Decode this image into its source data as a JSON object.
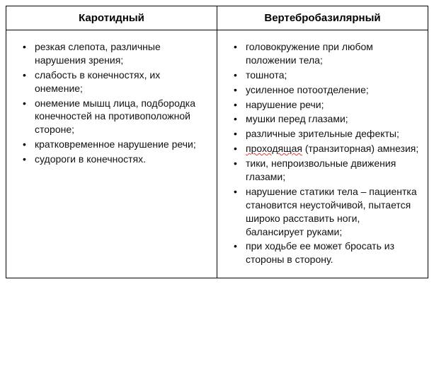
{
  "table": {
    "border_color": "#000000",
    "background_color": "#ffffff",
    "header_fontsize": 15,
    "cell_fontsize": 14,
    "text_color": "#111111",
    "columns": [
      {
        "header": "Каротидный"
      },
      {
        "header": "Вертебробазилярный"
      }
    ],
    "left_items": [
      "резкая слепота, различные нарушения зрения;",
      "слабость в конечностях, их онемение;",
      "онемение мышц лица, подбородка конечностей на противоположной стороне;",
      "кратковременное нарушение речи;",
      "судороги в конечностях."
    ],
    "right_items": [
      "головокружение при любом положении тела;",
      "тошнота;",
      "усиленное потоотделение;",
      "нарушение речи;",
      "мушки перед глазами;",
      "различные зрительные дефекты;",
      {
        "pre": "",
        "underlined": "проходящая",
        "post": " (транзиторная) амнезия;"
      },
      "тики, непроизвольные движения глазами;",
      "нарушение статики тела – пациентка становится неустойчивой, пытается широко расставить ноги, балансирует руками;",
      "при ходьбе ее может бросать из стороны в сторону."
    ],
    "spellcheck_underline_color": "#e53935"
  }
}
